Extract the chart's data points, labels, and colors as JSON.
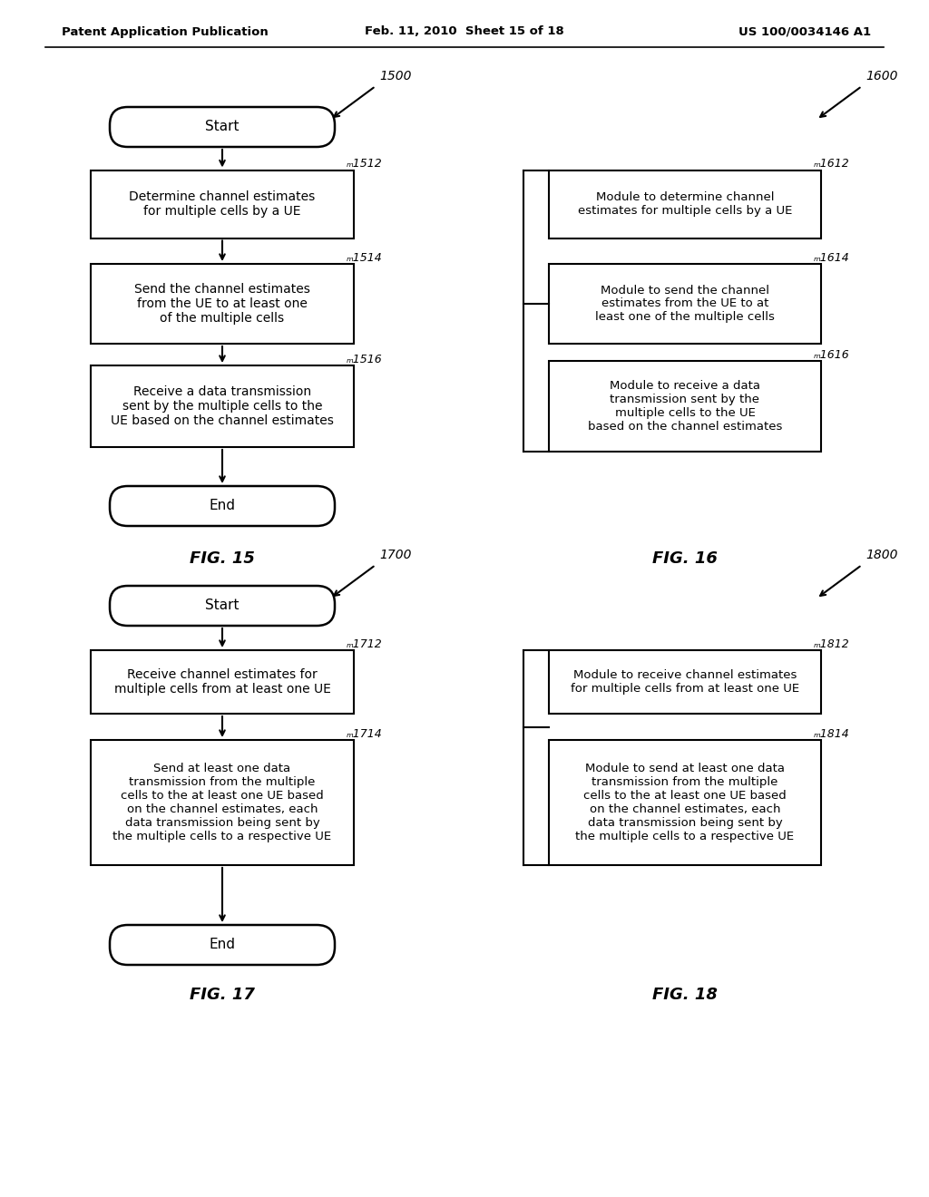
{
  "header_left": "Patent Application Publication",
  "header_center": "Feb. 11, 2010  Sheet 15 of 18",
  "header_right": "US 100/0034146 A1",
  "bg_color": "#ffffff",
  "fig15_label": "FIG. 15",
  "fig16_label": "FIG. 16",
  "fig17_label": "FIG. 17",
  "fig18_label": "FIG. 18",
  "ref_1500": "1500",
  "ref_1512": "ₘ1512",
  "ref_1514": "ₘ1514",
  "ref_1516": "ₘ1516",
  "ref_1600": "1600",
  "ref_1612": "ₘ1612",
  "ref_1614": "ₘ1614",
  "ref_1616": "ₘ1616",
  "ref_1700": "1700",
  "ref_1712": "ₘ1712",
  "ref_1714": "ₘ1714",
  "ref_1800": "1800",
  "ref_1812": "ₘ1812",
  "ref_1814": "ₘ1814",
  "box_f15_1": "Determine channel estimates\nfor multiple cells by a UE",
  "box_f15_2": "Send the channel estimates\nfrom the UE to at least one\nof the multiple cells",
  "box_f15_3": "Receive a data transmission\nsent by the multiple cells to the\nUE based on the channel estimates",
  "box_f16_1": "Module to determine channel\nestimates for multiple cells by a UE",
  "box_f16_2": "Module to send the channel\nestimates from the UE to at\nleast one of the multiple cells",
  "box_f16_3": "Module to receive a data\ntransmission sent by the\nmultiple cells to the UE\nbased on the channel estimates",
  "box_f17_1": "Receive channel estimates for\nmultiple cells from at least one UE",
  "box_f17_2": "Send at least one data\ntransmission from the multiple\ncells to the at least one UE based\non the channel estimates, each\ndata transmission being sent by\nthe multiple cells to a respective UE",
  "box_f18_1": "Module to receive channel estimates\nfor multiple cells from at least one UE",
  "box_f18_2": "Module to send at least one data\ntransmission from the multiple\ncells to the at least one UE based\non the channel estimates, each\ndata transmission being sent by\nthe multiple cells to a respective UE"
}
